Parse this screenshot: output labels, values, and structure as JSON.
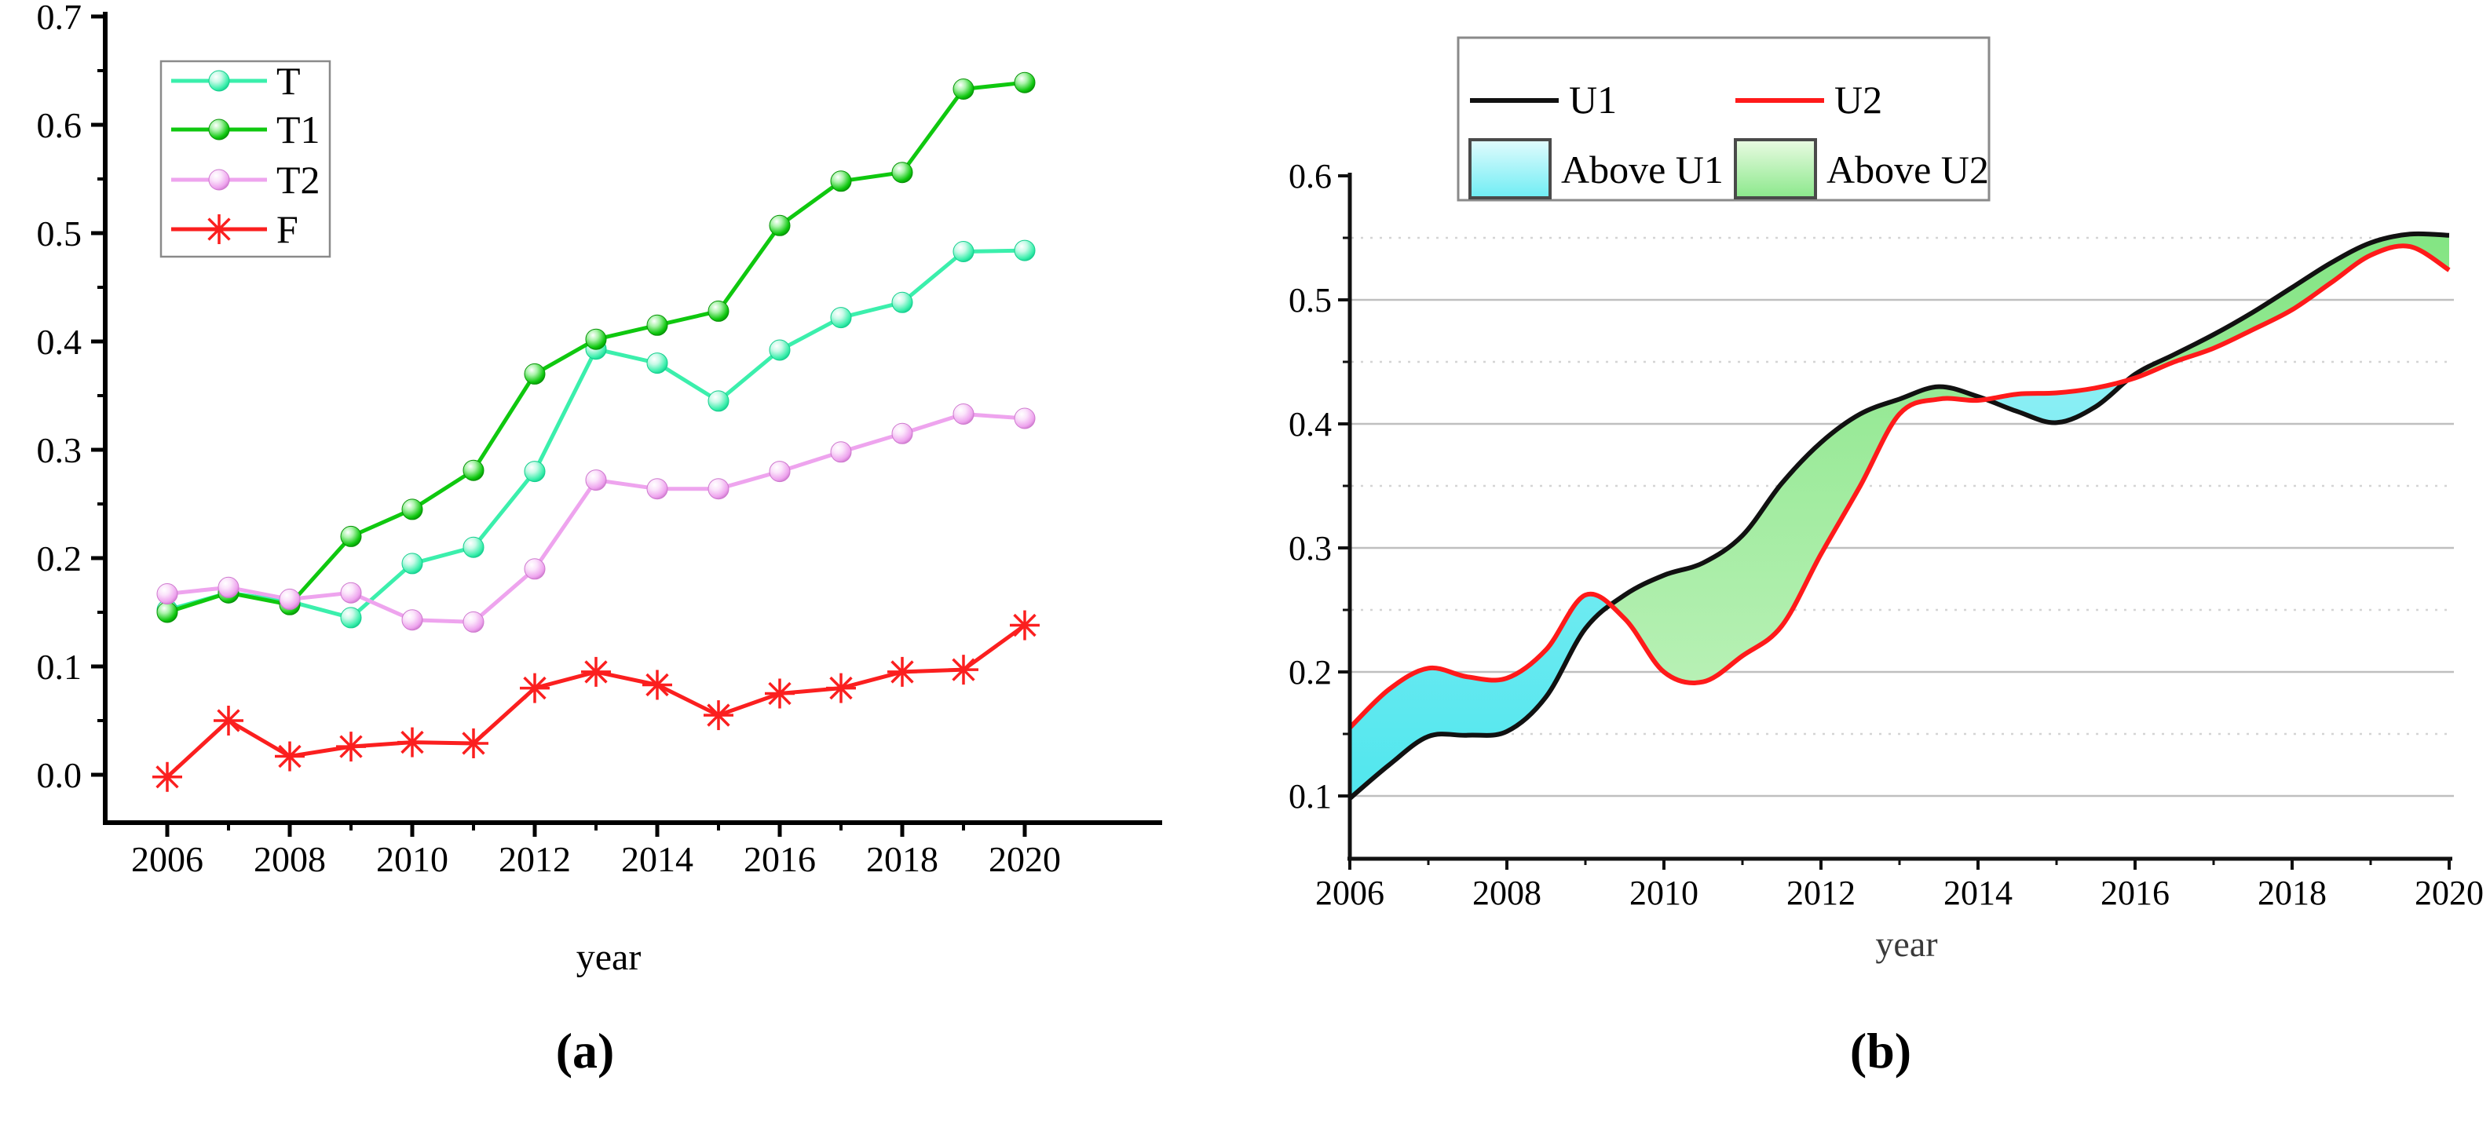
{
  "figure": {
    "background": "#ffffff",
    "captions": {
      "a": "(a)",
      "b": "(b)"
    }
  },
  "chart_data": [
    {
      "id": "a",
      "type": "line",
      "title": "",
      "xlabel": "year",
      "ylabel": "",
      "xlim": [
        2005.0,
        2022.2
      ],
      "ylim": [
        -0.044,
        0.705
      ],
      "grid": false,
      "legend_position": "top-left",
      "x": [
        2006,
        2007,
        2008,
        2009,
        2010,
        2011,
        2012,
        2013,
        2014,
        2015,
        2016,
        2017,
        2018,
        2019,
        2020
      ],
      "x_tick_labels": [
        "2006",
        "2008",
        "2010",
        "2012",
        "2014",
        "2016",
        "2018",
        "2020"
      ],
      "y_tick_labels": [
        "0.0",
        "0.1",
        "0.2",
        "0.3",
        "0.4",
        "0.5",
        "0.6",
        "0.7"
      ],
      "series": [
        {
          "name": "T",
          "marker": "ball",
          "color": "#3BEFAC",
          "color_light": "#C9FAE8",
          "color_dark": "#14CE8E",
          "values": [
            0.152,
            0.168,
            0.16,
            0.145,
            0.195,
            0.21,
            0.28,
            0.393,
            0.38,
            0.345,
            0.392,
            0.422,
            0.436,
            0.483,
            0.484
          ]
        },
        {
          "name": "T1",
          "marker": "ball",
          "color": "#0FC80F",
          "color_light": "#A9F3A9",
          "color_dark": "#079307",
          "values": [
            0.15,
            0.168,
            0.157,
            0.22,
            0.245,
            0.281,
            0.37,
            0.402,
            0.415,
            0.428,
            0.507,
            0.548,
            0.556,
            0.633,
            0.639
          ]
        },
        {
          "name": "T2",
          "marker": "ball",
          "color": "#EEA4EE",
          "color_light": "#FBE4FB",
          "color_dark": "#CE79CE",
          "values": [
            0.167,
            0.173,
            0.162,
            0.168,
            0.143,
            0.141,
            0.19,
            0.272,
            0.264,
            0.264,
            0.28,
            0.298,
            0.315,
            0.333,
            0.329
          ]
        },
        {
          "name": "F",
          "marker": "asterisk",
          "color": "#FB1F1F",
          "color_light": "#FB1F1F",
          "color_dark": "#D01010",
          "values": [
            -0.002,
            0.05,
            0.017,
            0.026,
            0.03,
            0.029,
            0.08,
            0.095,
            0.083,
            0.055,
            0.075,
            0.08,
            0.095,
            0.097,
            0.138
          ]
        }
      ],
      "legend": [
        "T",
        "T1",
        "T2",
        "F"
      ]
    },
    {
      "id": "b",
      "type": "area",
      "title": "",
      "xlabel": "year",
      "ylabel": "",
      "xlim": [
        2006,
        2020
      ],
      "ylim": [
        0.049,
        0.6
      ],
      "grid": {
        "major": "solid",
        "minor": "dotted",
        "major_color": "#bfbfbf",
        "minor_color": "#d4d4d4"
      },
      "legend_position": "top",
      "x_start": 2006,
      "x_step": 0.5,
      "x_tick_labels": [
        "2006",
        "2008",
        "2010",
        "2012",
        "2014",
        "2016",
        "2018",
        "2020"
      ],
      "y_tick_labels": [
        "0.1",
        "0.2",
        "0.3",
        "0.4",
        "0.5",
        "0.6"
      ],
      "series": [
        {
          "name": "U1",
          "color": "#111111",
          "values": [
            0.098,
            0.125,
            0.148,
            0.149,
            0.152,
            0.18,
            0.235,
            0.262,
            0.278,
            0.288,
            0.31,
            0.352,
            0.385,
            0.408,
            0.42,
            0.43,
            0.422,
            0.41,
            0.401,
            0.414,
            0.44,
            0.456,
            0.472,
            0.49,
            0.51,
            0.53,
            0.546,
            0.553,
            0.552
          ]
        },
        {
          "name": "U2",
          "color": "#FF1A1A",
          "values": [
            0.155,
            0.186,
            0.203,
            0.196,
            0.195,
            0.218,
            0.262,
            0.243,
            0.2,
            0.192,
            0.213,
            0.237,
            0.295,
            0.35,
            0.408,
            0.42,
            0.419,
            0.424,
            0.425,
            0.429,
            0.437,
            0.45,
            0.461,
            0.476,
            0.492,
            0.514,
            0.536,
            0.543,
            0.524
          ]
        }
      ],
      "fills": [
        {
          "name": "Above U1",
          "color_top": "#A8F2F7",
          "color_bottom": "#3FE4EC"
        },
        {
          "name": "Above U2",
          "color_top": "#7CE37C",
          "color_bottom": "#D4F7D0"
        }
      ],
      "legend": [
        "U1",
        "U2",
        "Above U1",
        "Above U2"
      ]
    }
  ]
}
